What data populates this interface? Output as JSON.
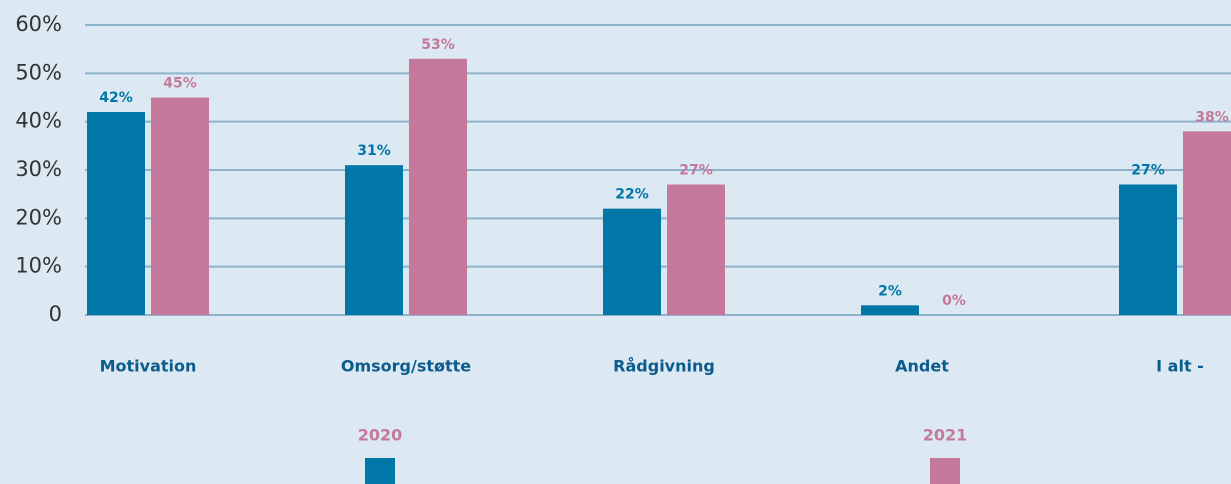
{
  "chart_data": {
    "type": "bar",
    "categories": [
      "Motivation",
      "Omsorg/støtte",
      "Rådgivning",
      "Andet",
      "I alt -"
    ],
    "series": [
      {
        "name": "2020",
        "color": "#0077a6",
        "values": [
          42,
          31,
          22,
          2,
          27
        ],
        "value_labels": [
          "42%",
          "31%",
          "22%",
          "2%",
          "27%"
        ]
      },
      {
        "name": "2021",
        "color": "#c4799b",
        "values": [
          45,
          53,
          27,
          0,
          38
        ],
        "value_labels": [
          "45%",
          "53%",
          "27%",
          "0%",
          "38%"
        ]
      }
    ],
    "ylim": [
      0,
      60
    ],
    "yticks": [
      0,
      {
        "value": 10,
        "label": "10%"
      },
      {
        "value": 20,
        "label": "20%"
      },
      {
        "value": 30,
        "label": "30%"
      },
      {
        "value": 40,
        "label": "40%"
      },
      {
        "value": 50,
        "label": "50%"
      },
      {
        "value": 60,
        "label": "60%"
      }
    ],
    "grid": true,
    "legend": "bottom"
  }
}
